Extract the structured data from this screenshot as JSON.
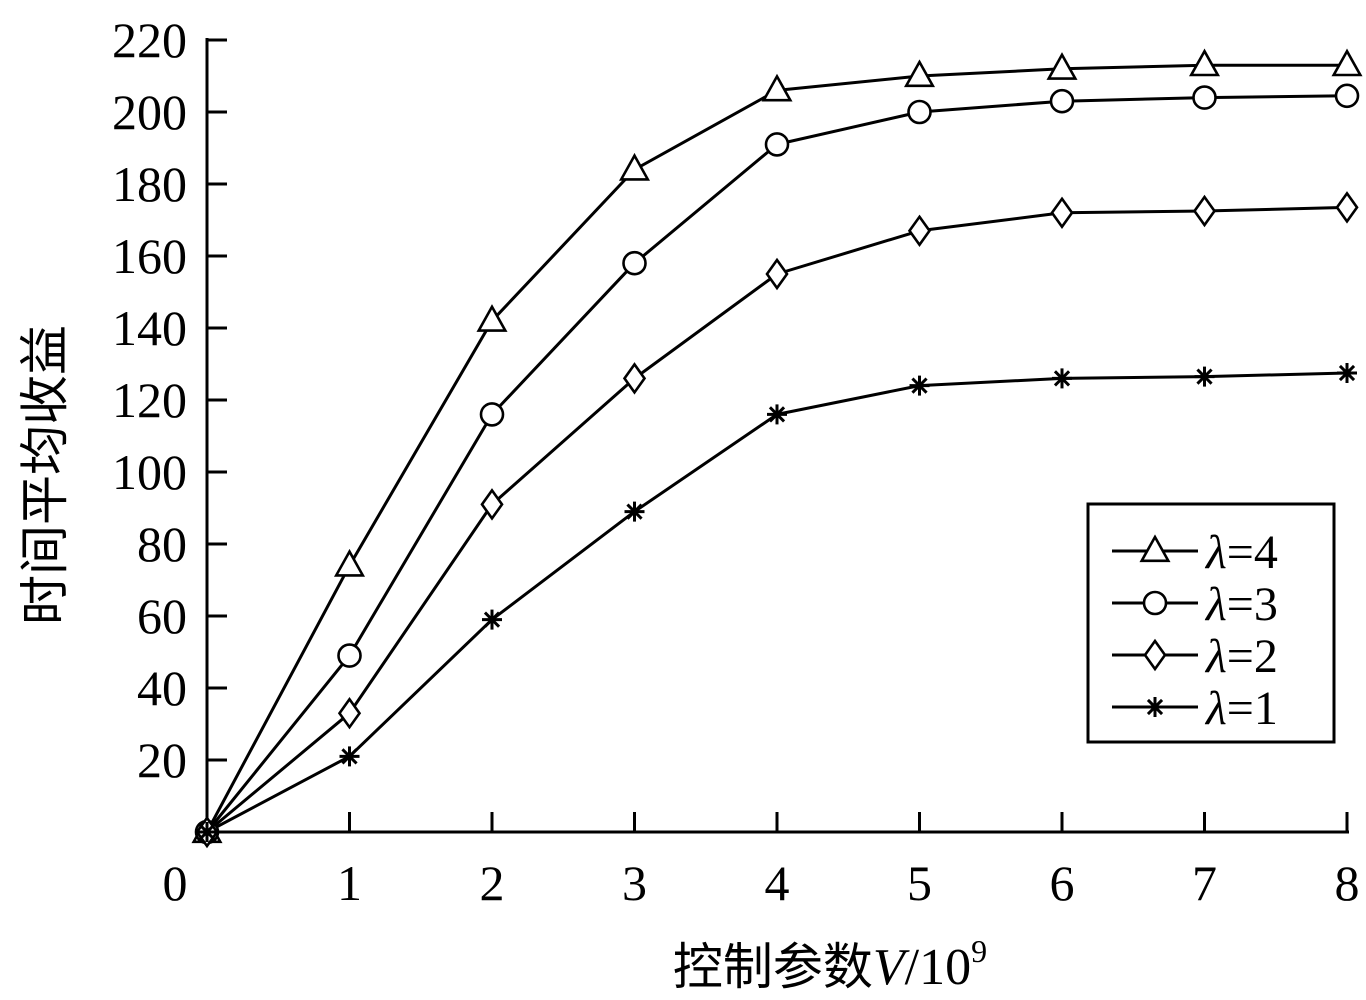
{
  "chart_data": {
    "type": "line",
    "x": [
      0,
      1,
      2,
      3,
      4,
      5,
      6,
      7,
      8
    ],
    "xlim": [
      0,
      8
    ],
    "ylim": [
      0,
      220
    ],
    "xticks": [
      "0",
      "1",
      "2",
      "3",
      "4",
      "5",
      "6",
      "7",
      "8"
    ],
    "yticks": [
      "20",
      "40",
      "60",
      "80",
      "100",
      "120",
      "140",
      "160",
      "180",
      "200",
      "220"
    ],
    "ytick_values": [
      20,
      40,
      60,
      80,
      100,
      120,
      140,
      160,
      180,
      200,
      220
    ],
    "xlabel": {
      "prefix": "控制参数",
      "variable": "V",
      "unit": "/10",
      "exponent": "9"
    },
    "ylabel": "时间平均收益",
    "grid": false,
    "legend_position": "bottom-right",
    "series": [
      {
        "name": "λ=4",
        "symbol": "λ",
        "value_text": "=4",
        "marker": "triangle",
        "values": [
          0,
          74,
          142,
          184,
          206,
          210,
          212,
          213,
          213
        ]
      },
      {
        "name": "λ=3",
        "symbol": "λ",
        "value_text": "=3",
        "marker": "circle",
        "values": [
          0,
          49,
          116,
          158,
          191,
          200,
          203,
          204,
          204.5
        ]
      },
      {
        "name": "λ=2",
        "symbol": "λ",
        "value_text": "=2",
        "marker": "diamond",
        "values": [
          0,
          33,
          91,
          126,
          155,
          167,
          172,
          172.5,
          173.5
        ]
      },
      {
        "name": "λ=1",
        "symbol": "λ",
        "value_text": "=1",
        "marker": "star",
        "values": [
          0,
          21,
          59,
          89,
          116,
          124,
          126,
          126.5,
          127.5
        ]
      }
    ]
  }
}
